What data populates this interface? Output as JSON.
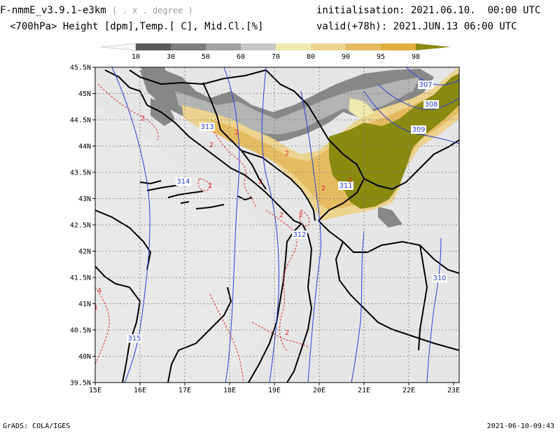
{
  "header": {
    "model": "F-nmmE_v3.9.1-e3km",
    "model_unit": "( . x . degree )",
    "variables": "<700hPa> Height [dpm],Temp.[ C], Mid.Cl.[%]",
    "init_label": "initialisation:",
    "init_value": "2021.06.10.  00:00 UTC",
    "valid_label": "valid(+78h):",
    "valid_value": "2021.JUN.13 06:00 UTC"
  },
  "colorbar": {
    "levels": [
      "10",
      "30",
      "50",
      "60",
      "70",
      "80",
      "90",
      "95",
      "98"
    ],
    "colors": [
      "#f7f7f7",
      "#5a5a5a",
      "#7d7d7d",
      "#a2a2a2",
      "#c8c8c8",
      "#f0eab0",
      "#ecd38e",
      "#e6bc62",
      "#e2ad3c",
      "#8a8a10"
    ]
  },
  "axes": {
    "lon_labels": [
      "15E",
      "16E",
      "17E",
      "18E",
      "19E",
      "20E",
      "21E",
      "22E",
      "23E"
    ],
    "lat_labels": [
      "45.5N",
      "45N",
      "44.5N",
      "44N",
      "43.5N",
      "43N",
      "42.5N",
      "42N",
      "41.5N",
      "41N",
      "40.5N",
      "40N",
      "39.5N"
    ]
  },
  "map": {
    "background": "#e6e6e6",
    "height_contour_color": "#2a3fd6",
    "temp_contour_color": "#e03030",
    "border_color": "#000000",
    "height_labels": [
      "307",
      "308",
      "309",
      "313",
      "314",
      "311",
      "312",
      "310",
      "315"
    ],
    "temp_labels": [
      "2",
      "2",
      "2",
      "2",
      "2",
      "2",
      "2",
      "2",
      "2",
      "2",
      "2",
      "4",
      "4"
    ]
  },
  "footer": {
    "left": "GrADS: COLA/IGES",
    "right": "2021-06-10-09:43"
  }
}
